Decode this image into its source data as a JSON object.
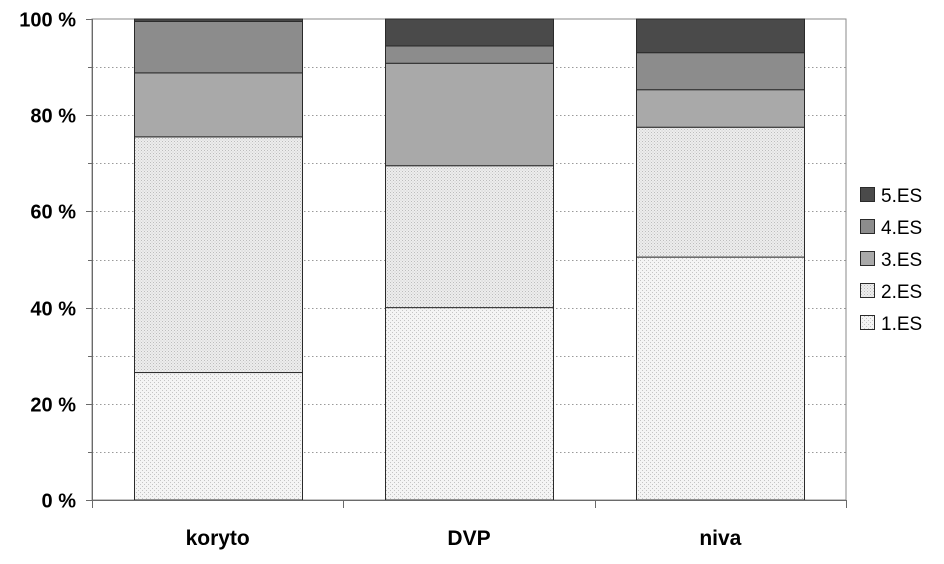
{
  "chart_data": {
    "type": "bar",
    "stacked": true,
    "percent": true,
    "title": "",
    "xlabel": "",
    "ylabel": "",
    "categories": [
      "koryto",
      "DVP",
      "niva"
    ],
    "series": [
      {
        "name": "1.ES",
        "values": [
          26.5,
          40.0,
          50.5
        ],
        "color": "#f2f2f2",
        "pattern": "dots-light"
      },
      {
        "name": "2.ES",
        "values": [
          49.0,
          29.5,
          27.0
        ],
        "color": "#e8e8e8",
        "pattern": "dots-dense"
      },
      {
        "name": "3.ES",
        "values": [
          13.3,
          21.3,
          7.8
        ],
        "color": "#a9a9a9"
      },
      {
        "name": "4.ES",
        "values": [
          10.7,
          3.6,
          7.7
        ],
        "color": "#8c8c8c"
      },
      {
        "name": "5.ES",
        "values": [
          0.5,
          5.6,
          7.0
        ],
        "color": "#4a4a4a"
      }
    ],
    "ylim": [
      0,
      100
    ],
    "y_ticks": [
      "0 %",
      "20 %",
      "40 %",
      "60 %",
      "80 %",
      "100 %"
    ],
    "y_tick_values": [
      0,
      20,
      40,
      60,
      80,
      100
    ],
    "grid": true,
    "legend_position": "right",
    "legend_order": [
      "5.ES",
      "4.ES",
      "3.ES",
      "2.ES",
      "1.ES"
    ],
    "plot_background": "#ffffff"
  }
}
